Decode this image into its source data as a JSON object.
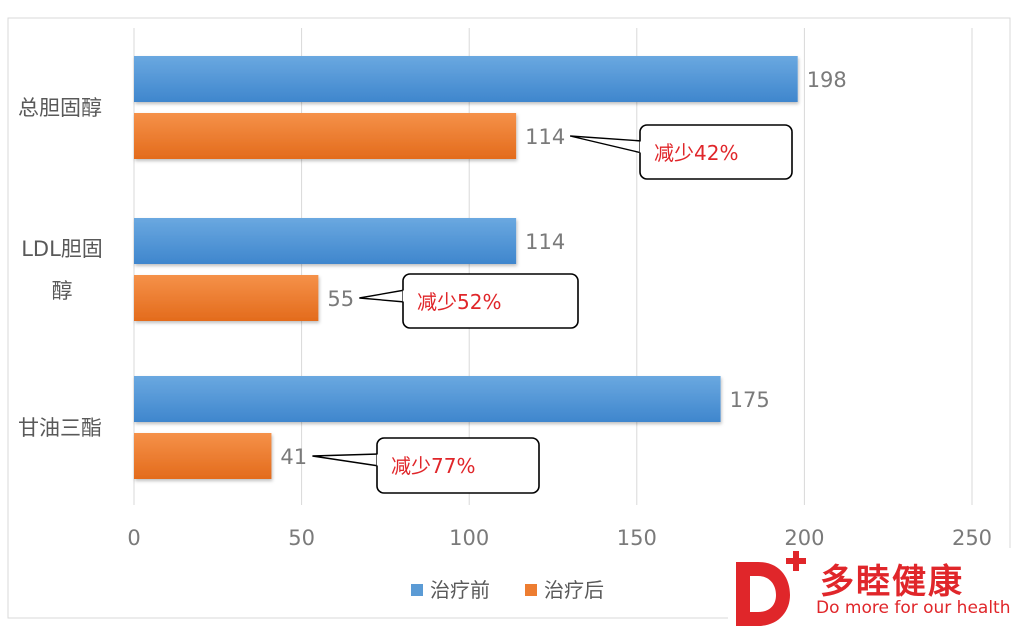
{
  "chart_data": {
    "type": "bar",
    "orientation": "horizontal",
    "categories": [
      "总胆固醇",
      "LDL胆固醇",
      "甘油三酯"
    ],
    "series": [
      {
        "name": "治疗前",
        "values": [
          198,
          114,
          175
        ],
        "color": "#5b9bd5"
      },
      {
        "name": "治疗后",
        "values": [
          114,
          55,
          41
        ],
        "color": "#ed7d31"
      }
    ],
    "xlim": [
      0,
      250
    ],
    "xticks": [
      0,
      50,
      100,
      150,
      200,
      250
    ],
    "grid": true,
    "legend": "bottom",
    "annotations": [
      "减少42%",
      "减少52%",
      "减少77%"
    ]
  },
  "brand": {
    "name": "多睦健康",
    "slogan": "Do more for our health",
    "color": "#e0262a"
  }
}
